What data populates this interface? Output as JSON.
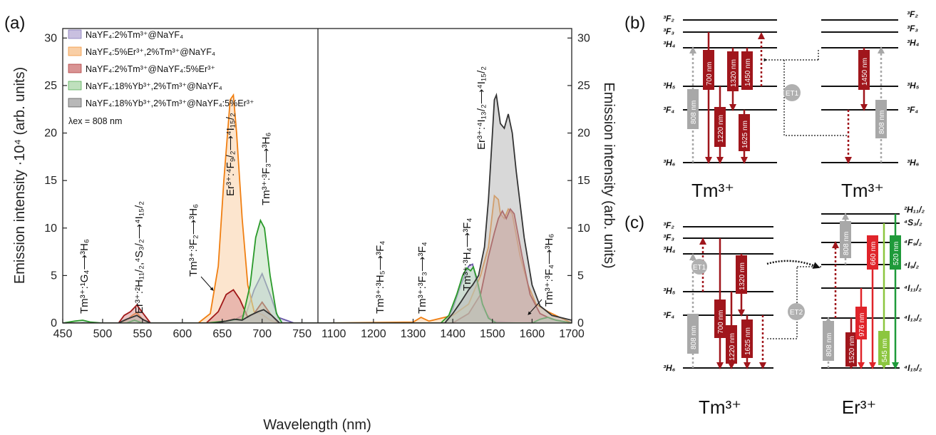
{
  "chart_data": {
    "type": "area",
    "panel_label": "(a)",
    "xlabel": "Wavelength (nm)",
    "ylabel_left": "Emission intensity ·10⁴ (arb. units)",
    "ylabel_right": "Emission intensity (arb. units)",
    "excitation": "λex = 808 nm",
    "left": {
      "xlim": [
        450,
        770
      ],
      "ylim": [
        0,
        31
      ],
      "xticks": [
        "450",
        "500",
        "550",
        "600",
        "650",
        "700",
        "750"
      ],
      "yticks": [
        "0",
        "5",
        "10",
        "15",
        "20",
        "25",
        "30"
      ]
    },
    "right": {
      "xlim": [
        1060,
        1700
      ],
      "ylim": [
        0,
        31
      ],
      "xticks": [
        "1100",
        "1200",
        "1300",
        "1400",
        "1500",
        "1600",
        "1700"
      ],
      "yticks": [
        "0",
        "5",
        "10",
        "15",
        "20",
        "25",
        "30"
      ]
    },
    "legend": [
      {
        "name": "NaYF₄:2%Tm³⁺@NaYF₄",
        "fill": "#c9c0e0",
        "stroke": "#6a5aa8"
      },
      {
        "name": "NaYF₄:5%Er³⁺,2%Tm³⁺@NaYF₄",
        "fill": "#f9cfa6",
        "stroke": "#f07f12"
      },
      {
        "name": "NaYF₄:2%Tm³⁺@NaYF₄:5%Er³⁺",
        "fill": "#d99494",
        "stroke": "#a01818"
      },
      {
        "name": "NaYF₄:18%Yb³⁺,2%Tm³⁺@NaYF₄",
        "fill": "#bfe0bd",
        "stroke": "#2a9a2a"
      },
      {
        "name": "NaYF₄:18%Yb³⁺,2%Tm³⁺@NaYF₄:5%Er³⁺",
        "fill": "#b8b8b8",
        "stroke": "#333333"
      }
    ],
    "series": [
      {
        "name": "NaYF₄:2%Tm³⁺@NaYF₄",
        "left": [
          [
            450,
            0
          ],
          [
            470,
            0
          ],
          [
            475,
            0.05
          ],
          [
            490,
            0
          ],
          [
            600,
            0
          ],
          [
            640,
            0
          ],
          [
            660,
            0.1
          ],
          [
            680,
            1
          ],
          [
            690,
            3.5
          ],
          [
            700,
            5.2
          ],
          [
            710,
            3
          ],
          [
            720,
            0.6
          ],
          [
            740,
            0
          ],
          [
            770,
            0
          ]
        ],
        "right": [
          [
            1060,
            0
          ],
          [
            1380,
            0
          ],
          [
            1400,
            1.5
          ],
          [
            1420,
            4
          ],
          [
            1440,
            6
          ],
          [
            1450,
            6.2
          ],
          [
            1460,
            4.5
          ],
          [
            1475,
            1.5
          ],
          [
            1500,
            0.2
          ],
          [
            1560,
            0
          ],
          [
            1640,
            0.1
          ],
          [
            1700,
            0
          ]
        ]
      },
      {
        "name": "NaYF₄:5%Er³⁺,2%Tm³⁺@NaYF₄",
        "left": [
          [
            450,
            0
          ],
          [
            520,
            0
          ],
          [
            530,
            0.3
          ],
          [
            537,
            0.8
          ],
          [
            543,
            1.1
          ],
          [
            550,
            0.4
          ],
          [
            560,
            0
          ],
          [
            620,
            0
          ],
          [
            635,
            1
          ],
          [
            645,
            6
          ],
          [
            652,
            15
          ],
          [
            660,
            23.5
          ],
          [
            664,
            24
          ],
          [
            668,
            20
          ],
          [
            675,
            11
          ],
          [
            682,
            4
          ],
          [
            690,
            1.2
          ],
          [
            700,
            0.9
          ],
          [
            710,
            0.3
          ],
          [
            720,
            0
          ],
          [
            770,
            0
          ]
        ],
        "right": [
          [
            1060,
            0
          ],
          [
            1300,
            0.1
          ],
          [
            1320,
            0.6
          ],
          [
            1340,
            0.2
          ],
          [
            1400,
            0.8
          ],
          [
            1440,
            2
          ],
          [
            1470,
            5
          ],
          [
            1490,
            8
          ],
          [
            1505,
            13.4
          ],
          [
            1515,
            13
          ],
          [
            1520,
            11.5
          ],
          [
            1530,
            11
          ],
          [
            1540,
            12
          ],
          [
            1550,
            11.5
          ],
          [
            1570,
            7
          ],
          [
            1590,
            4
          ],
          [
            1610,
            2
          ],
          [
            1640,
            1.2
          ],
          [
            1670,
            0.6
          ],
          [
            1700,
            0
          ]
        ]
      },
      {
        "name": "NaYF₄:2%Tm³⁺@NaYF₄:5%Er³⁺",
        "left": [
          [
            450,
            0
          ],
          [
            520,
            0
          ],
          [
            527,
            0.8
          ],
          [
            535,
            1.2
          ],
          [
            543,
            1.9
          ],
          [
            550,
            1.1
          ],
          [
            560,
            0
          ],
          [
            630,
            0
          ],
          [
            645,
            1.2
          ],
          [
            655,
            3
          ],
          [
            664,
            3.5
          ],
          [
            672,
            2.5
          ],
          [
            682,
            0.6
          ],
          [
            690,
            1
          ],
          [
            700,
            2.2
          ],
          [
            710,
            1
          ],
          [
            720,
            0
          ],
          [
            770,
            0
          ]
        ],
        "right": [
          [
            1060,
            0
          ],
          [
            1400,
            0
          ],
          [
            1440,
            1
          ],
          [
            1470,
            3
          ],
          [
            1490,
            7
          ],
          [
            1505,
            9.5
          ],
          [
            1515,
            11
          ],
          [
            1525,
            11.8
          ],
          [
            1535,
            11
          ],
          [
            1545,
            12
          ],
          [
            1555,
            11.5
          ],
          [
            1575,
            7
          ],
          [
            1595,
            3
          ],
          [
            1620,
            1
          ],
          [
            1650,
            0.4
          ],
          [
            1700,
            0
          ]
        ]
      },
      {
        "name": "NaYF₄:18%Yb³⁺,2%Tm³⁺@NaYF₄",
        "left": [
          [
            450,
            0
          ],
          [
            465,
            0.2
          ],
          [
            475,
            0.3
          ],
          [
            485,
            0.1
          ],
          [
            500,
            0
          ],
          [
            530,
            0
          ],
          [
            540,
            0.3
          ],
          [
            550,
            0
          ],
          [
            630,
            0
          ],
          [
            655,
            0.2
          ],
          [
            668,
            0.4
          ],
          [
            675,
            0.3
          ],
          [
            685,
            4
          ],
          [
            692,
            9
          ],
          [
            698,
            10.8
          ],
          [
            703,
            10
          ],
          [
            710,
            5
          ],
          [
            718,
            1
          ],
          [
            725,
            0
          ],
          [
            770,
            0
          ]
        ],
        "right": [
          [
            1060,
            0
          ],
          [
            1370,
            0
          ],
          [
            1390,
            0.8
          ],
          [
            1410,
            3
          ],
          [
            1425,
            5
          ],
          [
            1435,
            5.8
          ],
          [
            1445,
            5.5
          ],
          [
            1452,
            5.9
          ],
          [
            1460,
            4.8
          ],
          [
            1475,
            2
          ],
          [
            1490,
            0.5
          ],
          [
            1510,
            0
          ],
          [
            1600,
            0
          ],
          [
            1620,
            0.4
          ],
          [
            1640,
            0.6
          ],
          [
            1660,
            0.3
          ],
          [
            1700,
            0
          ]
        ]
      },
      {
        "name": "NaYF₄:18%Yb³⁺,2%Tm³⁺@NaYF₄:5%Er³⁺",
        "left": [
          [
            450,
            0
          ],
          [
            520,
            0
          ],
          [
            530,
            0.4
          ],
          [
            543,
            0.8
          ],
          [
            552,
            0.3
          ],
          [
            560,
            0
          ],
          [
            640,
            0
          ],
          [
            655,
            0.2
          ],
          [
            665,
            0.4
          ],
          [
            675,
            0.3
          ],
          [
            685,
            0.8
          ],
          [
            695,
            1.2
          ],
          [
            702,
            1.4
          ],
          [
            712,
            0.8
          ],
          [
            722,
            0
          ],
          [
            770,
            0
          ]
        ],
        "right": [
          [
            1060,
            0
          ],
          [
            1380,
            0
          ],
          [
            1400,
            1
          ],
          [
            1420,
            2.2
          ],
          [
            1440,
            3.5
          ],
          [
            1450,
            4
          ],
          [
            1465,
            5
          ],
          [
            1480,
            8
          ],
          [
            1490,
            13
          ],
          [
            1500,
            20
          ],
          [
            1505,
            23.5
          ],
          [
            1510,
            24
          ],
          [
            1520,
            21
          ],
          [
            1530,
            20.5
          ],
          [
            1540,
            22
          ],
          [
            1550,
            20
          ],
          [
            1560,
            16
          ],
          [
            1580,
            9
          ],
          [
            1600,
            4
          ],
          [
            1620,
            1.8
          ],
          [
            1650,
            0.8
          ],
          [
            1700,
            0.3
          ]
        ]
      }
    ],
    "annotations": [
      {
        "text": "Tm³⁺:¹G₄⟶³H₆"
      },
      {
        "text": "Er³⁺:²H₁₁/₂,⁴S₃/₂⟶⁴I₁₅/₂"
      },
      {
        "text": "Tm³⁺:³F₂⟶³H₆"
      },
      {
        "text": "Er³⁺:⁴F₉/₂⟶⁴I₁₅/₂"
      },
      {
        "text": "Tm³⁺:³F₃⟶³H₆"
      },
      {
        "text": "Tm³⁺:³H₅⟶³F₄"
      },
      {
        "text": "Tm³⁺:³F₃⟶³F₄"
      },
      {
        "text": "Tm³⁺:³H₄⟶³F₄"
      },
      {
        "text": "Er³⁺:⁴I₁₃/₂⟶⁴I₁₅/₂"
      },
      {
        "text": "Tm³⁺:³F₄⟶³H₆"
      }
    ]
  },
  "diagram_b": {
    "panel_label": "(b)",
    "left_ion": "Tm³⁺",
    "right_ion": "Tm³⁺",
    "left_levels": [
      "³F₂",
      "³F₃",
      "³H₄",
      "³H₅",
      "³F₄",
      "³H₆"
    ],
    "right_levels": [
      "³F₂",
      "³F₃",
      "³H₄",
      "³H₅",
      "³F₄",
      "³H₆"
    ],
    "transfer": "ET1",
    "arrows": [
      "808 nm",
      "700 nm",
      "1220 nm",
      "1320 nm",
      "1450 nm",
      "1625 nm",
      "1450 nm",
      "808 nm"
    ]
  },
  "diagram_c": {
    "panel_label": "(c)",
    "left_ion": "Tm³⁺",
    "right_ion": "Er³⁺",
    "left_levels": [
      "³F₂",
      "³F₃",
      "³H₄",
      "³H₅",
      "³F₄",
      "³H₆"
    ],
    "right_levels": [
      "²H₁₁/₂",
      "⁴S₃/₂",
      "⁴F₉/₂",
      "⁴I₉/₂",
      "⁴I₁₁/₂",
      "⁴I₁₃/₂",
      "⁴I₁₅/₂"
    ],
    "transfers": [
      "ET1",
      "ET2"
    ],
    "arrows": [
      "808 nm",
      "700 nm",
      "1220 nm",
      "1320 nm",
      "1625 nm",
      "808 nm",
      "808 nm",
      "1520 nm",
      "976 nm",
      "660 nm",
      "545 nm",
      "520 nm"
    ]
  },
  "colors": {
    "dark_red": "#a0161c",
    "red": "#e0242a",
    "gray": "#a8a8a8",
    "light_green": "#8cc63f",
    "green": "#1f9a3a"
  }
}
